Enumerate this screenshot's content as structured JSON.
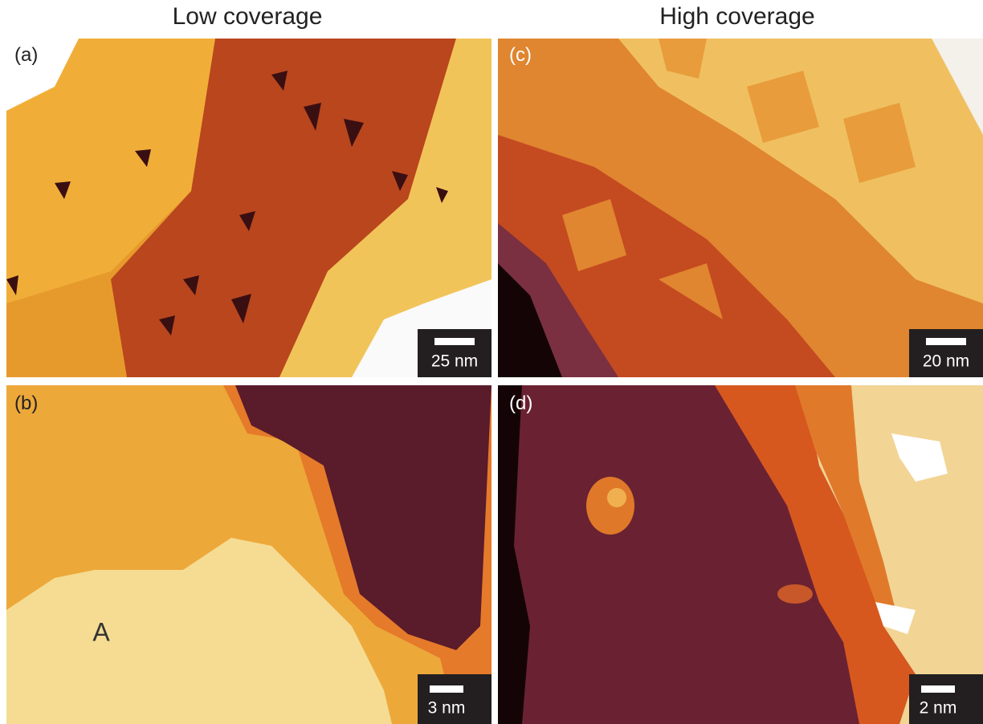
{
  "columns": [
    "Low coverage",
    "High coverage"
  ],
  "panels": [
    {
      "label": "(a)",
      "scale_bar": "25 nm"
    },
    {
      "label": "(b)",
      "scale_bar": "3 nm",
      "annotation": "A"
    },
    {
      "label": "(c)",
      "scale_bar": "20 nm"
    },
    {
      "label": "(d)",
      "scale_bar": "2 nm"
    }
  ]
}
